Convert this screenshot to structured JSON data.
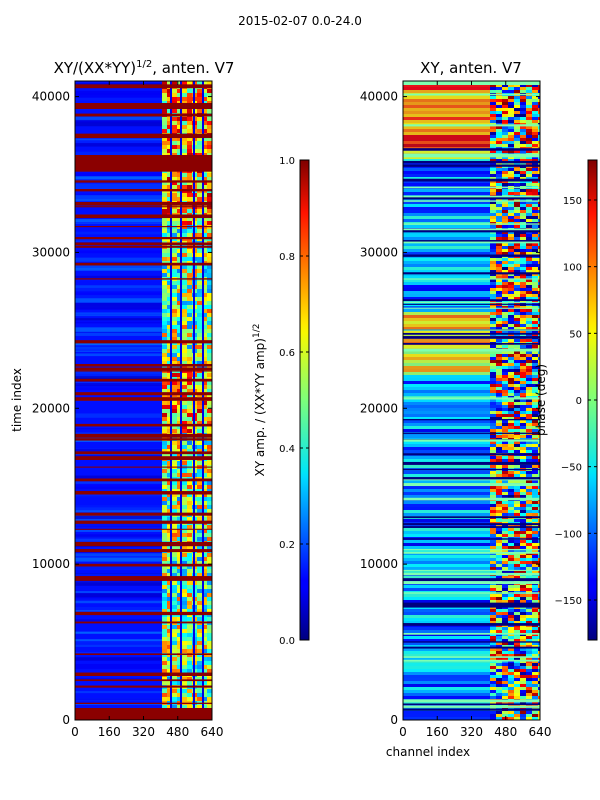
{
  "figure": {
    "suptitle": "2015-02-07 0.0-24.0"
  },
  "chart_data": [
    {
      "type": "heatmap",
      "title_main": "XY/(XX*YY)",
      "title_sup": "1/2",
      "title_tail": ", anten. V7",
      "xlabel": "",
      "ylabel": "time index",
      "xlim": [
        0,
        640
      ],
      "ylim": [
        0,
        41000
      ],
      "xticks": [
        0,
        160,
        320,
        480,
        640
      ],
      "yticks": [
        0,
        10000,
        20000,
        30000,
        40000
      ],
      "colorbar": {
        "label_main": "XY amp. / (XX*YY amp)",
        "label_sup": "1/2",
        "range": [
          0.0,
          1.0
        ],
        "ticks": [
          0.0,
          0.2,
          0.4,
          0.6,
          0.8,
          1.0
        ],
        "tick_labels": [
          "0.0",
          "0.2",
          "0.4",
          "0.6",
          "0.8",
          "1.0"
        ]
      }
    },
    {
      "type": "heatmap",
      "title": "XY, anten. V7",
      "xlabel": "channel index",
      "ylabel": "",
      "xlim": [
        0,
        640
      ],
      "ylim": [
        0,
        41000
      ],
      "xticks": [
        0,
        160,
        320,
        480,
        640
      ],
      "yticks": [
        0,
        10000,
        20000,
        30000,
        40000
      ],
      "colorbar": {
        "label": "phase (deg)",
        "range": [
          -180,
          180
        ],
        "ticks": [
          -150,
          -100,
          -50,
          0,
          50,
          100,
          150
        ],
        "tick_labels": [
          "−150",
          "−100",
          "−50",
          "0",
          "50",
          "100",
          "150"
        ]
      }
    }
  ]
}
